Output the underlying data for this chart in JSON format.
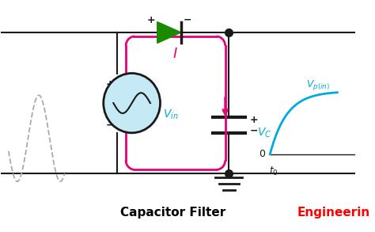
{
  "bg_color": "#ffffff",
  "black": "#1a1a1a",
  "pink": "#e8007a",
  "green": "#1a8a00",
  "cyan": "#00aadd",
  "gray": "#aaaaaa",
  "title": "Capacitor Filter",
  "title_color": "#000000",
  "eng_color": "#ff0000",
  "eng_text": "Engineerin",
  "figw": 4.74,
  "figh": 2.93,
  "dpi": 100
}
